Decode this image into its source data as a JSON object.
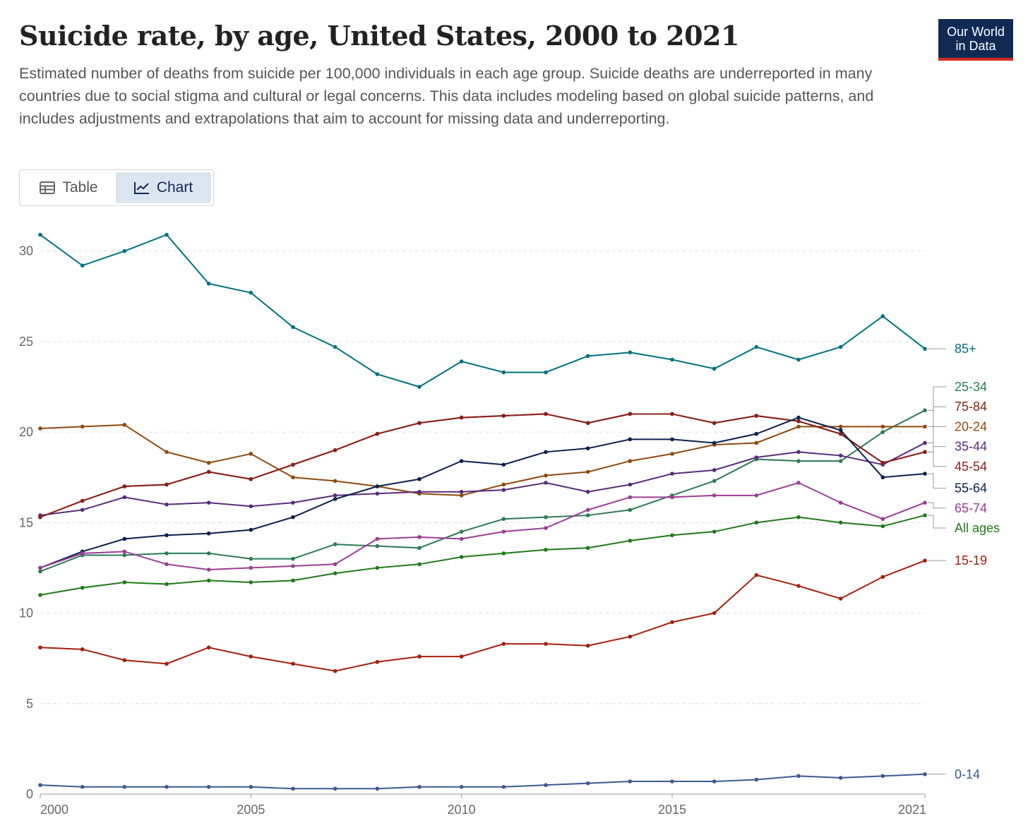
{
  "header": {
    "title": "Suicide rate, by age, United States, 2000 to 2021",
    "subtitle": "Estimated number of deaths from suicide per 100,000 individuals in each age group. Suicide deaths are underreported in many countries due to social stigma and cultural or legal concerns. This data includes modeling based on global suicide patterns, and includes adjustments and extrapolations that aim to account for missing data and underreporting.",
    "logo_line1": "Our World",
    "logo_line2": "in Data"
  },
  "tabs": {
    "table_label": "Table",
    "chart_label": "Chart",
    "table_icon": "table-icon",
    "chart_icon": "line-chart-icon"
  },
  "chart_data": {
    "type": "line",
    "x": [
      2000,
      2001,
      2002,
      2003,
      2004,
      2005,
      2006,
      2007,
      2008,
      2009,
      2010,
      2011,
      2012,
      2013,
      2014,
      2015,
      2016,
      2017,
      2018,
      2019,
      2020,
      2021
    ],
    "xticks": [
      2000,
      2005,
      2010,
      2015,
      2021
    ],
    "yticks": [
      0,
      5,
      10,
      15,
      20,
      25,
      30
    ],
    "ylim": [
      0,
      31
    ],
    "xlim": [
      2000,
      2021
    ],
    "grid": "horizontal dashed",
    "legend": "right end labels",
    "series": [
      {
        "name": "85+",
        "color": "#00727f",
        "values": [
          30.9,
          29.2,
          30.0,
          30.9,
          28.2,
          27.7,
          25.8,
          24.7,
          23.2,
          22.5,
          23.9,
          23.3,
          23.3,
          24.2,
          24.4,
          24.0,
          23.5,
          24.7,
          24.0,
          24.7,
          26.4,
          24.6
        ]
      },
      {
        "name": "25-34",
        "color": "#2c7a55",
        "values": [
          12.3,
          13.2,
          13.2,
          13.3,
          13.3,
          13.0,
          13.0,
          13.8,
          13.7,
          13.6,
          14.5,
          15.2,
          15.3,
          15.4,
          15.7,
          16.5,
          17.3,
          18.5,
          18.4,
          18.4,
          20.0,
          21.2
        ]
      },
      {
        "name": "75-84",
        "color": "#7a2a0c",
        "values": [
          15.3,
          16.2,
          17.0,
          17.1,
          17.8,
          17.4,
          18.2,
          19.0,
          19.9,
          20.5,
          20.8,
          20.9,
          21.0,
          20.5,
          21.0,
          21.0,
          20.5,
          20.9,
          20.6,
          19.9,
          18.3,
          18.9
        ]
      },
      {
        "name": "20-24",
        "color": "#8f4a0e",
        "values": [
          20.2,
          20.3,
          20.4,
          18.9,
          18.3,
          18.8,
          17.5,
          17.3,
          17.0,
          16.6,
          16.5,
          17.1,
          17.6,
          17.8,
          18.4,
          18.8,
          19.3,
          19.4,
          20.3,
          20.3,
          20.3,
          20.3
        ]
      },
      {
        "name": "35-44",
        "color": "#582b7a",
        "values": [
          15.4,
          15.7,
          16.4,
          16.0,
          16.1,
          15.9,
          16.1,
          16.5,
          16.6,
          16.7,
          16.7,
          16.8,
          17.2,
          16.7,
          17.1,
          17.7,
          17.9,
          18.6,
          18.9,
          18.7,
          18.2,
          19.4
        ]
      },
      {
        "name": "45-54",
        "color": "#8b1f1a",
        "values": [
          15.3,
          16.2,
          17.0,
          17.1,
          17.8,
          17.4,
          18.2,
          19.0,
          19.9,
          20.5,
          20.8,
          20.9,
          21.0,
          20.5,
          21.0,
          21.0,
          20.5,
          20.9,
          20.6,
          19.9,
          18.3,
          18.9
        ]
      },
      {
        "name": "55-64",
        "color": "#0d1f4c",
        "values": [
          12.5,
          13.4,
          14.1,
          14.3,
          14.4,
          14.6,
          15.3,
          16.3,
          17.0,
          17.4,
          18.4,
          18.2,
          18.9,
          19.1,
          19.6,
          19.6,
          19.4,
          19.9,
          20.8,
          20.1,
          17.5,
          17.7
        ]
      },
      {
        "name": "65-74",
        "color": "#9a3d94",
        "values": [
          12.5,
          13.3,
          13.4,
          12.7,
          12.4,
          12.5,
          12.6,
          12.7,
          14.1,
          14.2,
          14.1,
          14.5,
          14.7,
          15.7,
          16.4,
          16.4,
          16.5,
          16.5,
          17.2,
          16.1,
          15.2,
          16.1
        ]
      },
      {
        "name": "All ages",
        "color": "#1e7a17",
        "values": [
          11.0,
          11.4,
          11.7,
          11.6,
          11.8,
          11.7,
          11.8,
          12.2,
          12.5,
          12.7,
          13.1,
          13.3,
          13.5,
          13.6,
          14.0,
          14.3,
          14.5,
          15.0,
          15.3,
          15.0,
          14.8,
          15.4
        ]
      },
      {
        "name": "15-19",
        "color": "#a3200c",
        "values": [
          8.1,
          8.0,
          7.4,
          7.2,
          8.1,
          7.6,
          7.2,
          6.8,
          7.3,
          7.6,
          7.6,
          8.3,
          8.3,
          8.2,
          8.7,
          9.5,
          10.0,
          12.1,
          11.5,
          10.8,
          12.0,
          12.9
        ]
      },
      {
        "name": "0-14",
        "color": "#3b5a92",
        "values": [
          0.5,
          0.4,
          0.4,
          0.4,
          0.4,
          0.4,
          0.3,
          0.3,
          0.3,
          0.4,
          0.4,
          0.4,
          0.5,
          0.6,
          0.7,
          0.7,
          0.7,
          0.8,
          1.0,
          0.9,
          1.0,
          1.1
        ]
      }
    ],
    "end_labels": [
      {
        "series": "85+",
        "y": 24.6
      },
      {
        "series": "25-34",
        "y": 22.5
      },
      {
        "series": "75-84",
        "y": 21.4
      },
      {
        "series": "20-24",
        "y": 20.3
      },
      {
        "series": "35-44",
        "y": 19.2
      },
      {
        "series": "45-54",
        "y": 18.1
      },
      {
        "series": "55-64",
        "y": 16.9
      },
      {
        "series": "65-74",
        "y": 15.8
      },
      {
        "series": "All ages",
        "y": 14.7
      },
      {
        "series": "15-19",
        "y": 12.9
      },
      {
        "series": "0-14",
        "y": 1.1
      }
    ]
  }
}
